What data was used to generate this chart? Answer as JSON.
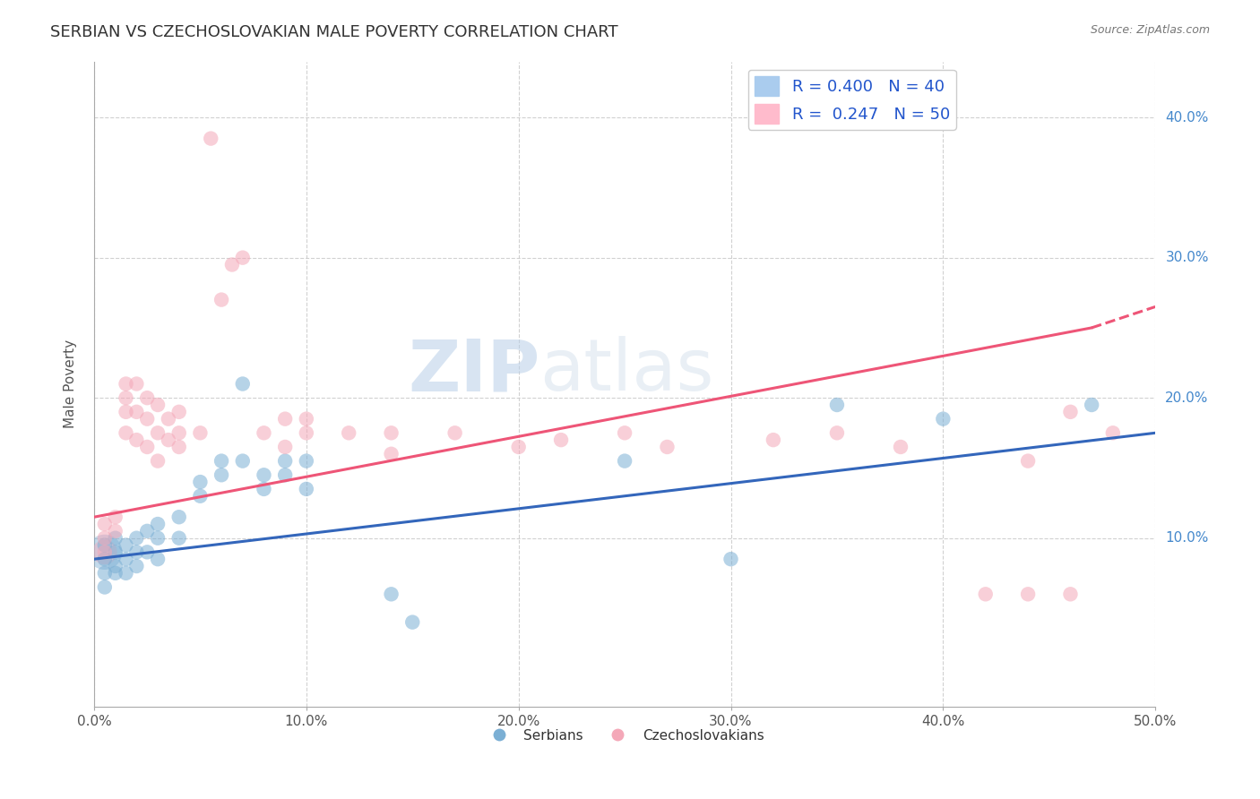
{
  "title": "SERBIAN VS CZECHOSLOVAKIAN MALE POVERTY CORRELATION CHART",
  "source": "Source: ZipAtlas.com",
  "ylabel": "Male Poverty",
  "xlim": [
    0.0,
    0.5
  ],
  "ylim": [
    -0.02,
    0.44
  ],
  "background_color": "#ffffff",
  "blue_R": 0.4,
  "blue_N": 40,
  "pink_R": 0.247,
  "pink_N": 50,
  "blue_color": "#7bafd4",
  "pink_color": "#f4a8b8",
  "blue_label": "Serbians",
  "pink_label": "Czechoslovakians",
  "blue_points": [
    [
      0.005,
      0.085
    ],
    [
      0.005,
      0.095
    ],
    [
      0.005,
      0.075
    ],
    [
      0.005,
      0.065
    ],
    [
      0.01,
      0.1
    ],
    [
      0.01,
      0.09
    ],
    [
      0.01,
      0.08
    ],
    [
      0.01,
      0.075
    ],
    [
      0.015,
      0.095
    ],
    [
      0.015,
      0.085
    ],
    [
      0.015,
      0.075
    ],
    [
      0.02,
      0.1
    ],
    [
      0.02,
      0.09
    ],
    [
      0.02,
      0.08
    ],
    [
      0.025,
      0.105
    ],
    [
      0.025,
      0.09
    ],
    [
      0.03,
      0.11
    ],
    [
      0.03,
      0.1
    ],
    [
      0.03,
      0.085
    ],
    [
      0.04,
      0.115
    ],
    [
      0.04,
      0.1
    ],
    [
      0.05,
      0.14
    ],
    [
      0.05,
      0.13
    ],
    [
      0.06,
      0.155
    ],
    [
      0.06,
      0.145
    ],
    [
      0.07,
      0.21
    ],
    [
      0.07,
      0.155
    ],
    [
      0.08,
      0.145
    ],
    [
      0.08,
      0.135
    ],
    [
      0.09,
      0.155
    ],
    [
      0.09,
      0.145
    ],
    [
      0.1,
      0.155
    ],
    [
      0.1,
      0.135
    ],
    [
      0.25,
      0.155
    ],
    [
      0.35,
      0.195
    ],
    [
      0.4,
      0.185
    ],
    [
      0.47,
      0.195
    ],
    [
      0.3,
      0.085
    ],
    [
      0.14,
      0.06
    ],
    [
      0.15,
      0.04
    ]
  ],
  "pink_points": [
    [
      0.005,
      0.11
    ],
    [
      0.005,
      0.1
    ],
    [
      0.005,
      0.09
    ],
    [
      0.01,
      0.115
    ],
    [
      0.01,
      0.105
    ],
    [
      0.015,
      0.21
    ],
    [
      0.015,
      0.2
    ],
    [
      0.015,
      0.19
    ],
    [
      0.015,
      0.175
    ],
    [
      0.02,
      0.21
    ],
    [
      0.02,
      0.19
    ],
    [
      0.02,
      0.17
    ],
    [
      0.025,
      0.2
    ],
    [
      0.025,
      0.185
    ],
    [
      0.025,
      0.165
    ],
    [
      0.03,
      0.195
    ],
    [
      0.03,
      0.175
    ],
    [
      0.03,
      0.155
    ],
    [
      0.035,
      0.185
    ],
    [
      0.035,
      0.17
    ],
    [
      0.04,
      0.19
    ],
    [
      0.04,
      0.175
    ],
    [
      0.04,
      0.165
    ],
    [
      0.05,
      0.175
    ],
    [
      0.055,
      0.385
    ],
    [
      0.06,
      0.27
    ],
    [
      0.065,
      0.295
    ],
    [
      0.07,
      0.3
    ],
    [
      0.08,
      0.175
    ],
    [
      0.09,
      0.185
    ],
    [
      0.09,
      0.165
    ],
    [
      0.1,
      0.185
    ],
    [
      0.1,
      0.175
    ],
    [
      0.12,
      0.175
    ],
    [
      0.14,
      0.175
    ],
    [
      0.14,
      0.16
    ],
    [
      0.17,
      0.175
    ],
    [
      0.2,
      0.165
    ],
    [
      0.22,
      0.17
    ],
    [
      0.25,
      0.175
    ],
    [
      0.27,
      0.165
    ],
    [
      0.32,
      0.17
    ],
    [
      0.35,
      0.175
    ],
    [
      0.38,
      0.165
    ],
    [
      0.42,
      0.06
    ],
    [
      0.44,
      0.155
    ],
    [
      0.44,
      0.06
    ],
    [
      0.46,
      0.06
    ],
    [
      0.46,
      0.19
    ],
    [
      0.48,
      0.175
    ]
  ],
  "blue_large_point": [
    0.005,
    0.09,
    800
  ],
  "pink_large_point": [
    0.005,
    0.09,
    400
  ],
  "xticks": [
    0.0,
    0.1,
    0.2,
    0.3,
    0.4,
    0.5
  ],
  "xtick_labels": [
    "0.0%",
    "10.0%",
    "20.0%",
    "30.0%",
    "40.0%",
    "50.0%"
  ],
  "ytick_positions": [
    0.1,
    0.2,
    0.3,
    0.4
  ],
  "ytick_labels": [
    "10.0%",
    "20.0%",
    "30.0%",
    "40.0%"
  ],
  "grid_color": "#cccccc",
  "title_fontsize": 13,
  "axis_label_fontsize": 11,
  "tick_fontsize": 11,
  "blue_trend": [
    0.0,
    0.085,
    0.5,
    0.175
  ],
  "pink_trend_solid": [
    0.0,
    0.115,
    0.47,
    0.25
  ],
  "pink_trend_dashed": [
    0.47,
    0.25,
    0.5,
    0.265
  ]
}
